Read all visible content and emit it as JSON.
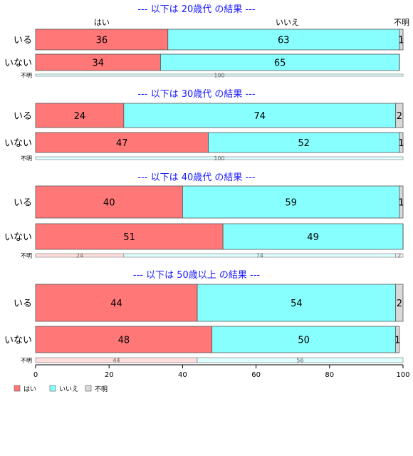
{
  "chart_data": {
    "type": "bar",
    "orientation": "horizontal",
    "stacked": "percent",
    "xlim": [
      0,
      100
    ],
    "xticks": [
      0,
      20,
      40,
      60,
      80,
      100
    ],
    "column_headers": [
      "はい",
      "いいえ",
      "不明"
    ],
    "legend": {
      "position": "bottom-left",
      "entries": [
        {
          "name": "はい",
          "color": "#ff7777"
        },
        {
          "name": "いいえ",
          "color": "#88ffff"
        },
        {
          "name": "不明",
          "color": "#d9d9d9"
        }
      ]
    },
    "panels": [
      {
        "title": "--- 以下は 20歳代 の結果 ---",
        "rows": [
          {
            "label": "いる",
            "values": [
              36,
              63,
              1
            ]
          },
          {
            "label": "いない",
            "values": [
              34,
              65,
              0
            ]
          }
        ],
        "unknown_row": {
          "label": "不明",
          "values": [
            0,
            100,
            0
          ]
        }
      },
      {
        "title": "--- 以下は 30歳代 の結果 ---",
        "rows": [
          {
            "label": "いる",
            "values": [
              24,
              74,
              2
            ]
          },
          {
            "label": "いない",
            "values": [
              47,
              52,
              1
            ]
          }
        ],
        "unknown_row": {
          "label": "不明",
          "values": [
            0,
            100,
            0
          ]
        }
      },
      {
        "title": "--- 以下は 40歳代 の結果 ---",
        "rows": [
          {
            "label": "いる",
            "values": [
              40,
              59,
              1
            ]
          },
          {
            "label": "いない",
            "values": [
              51,
              49,
              0
            ]
          }
        ],
        "unknown_row": {
          "label": "不明",
          "values": [
            24,
            74,
            2
          ]
        }
      },
      {
        "title": "--- 以下は 50歳以上 の結果 ---",
        "rows": [
          {
            "label": "いる",
            "values": [
              44,
              54,
              2
            ]
          },
          {
            "label": "いない",
            "values": [
              48,
              50,
              1
            ]
          }
        ],
        "unknown_row": {
          "label": "不明",
          "values": [
            44,
            56,
            0
          ]
        }
      }
    ]
  }
}
